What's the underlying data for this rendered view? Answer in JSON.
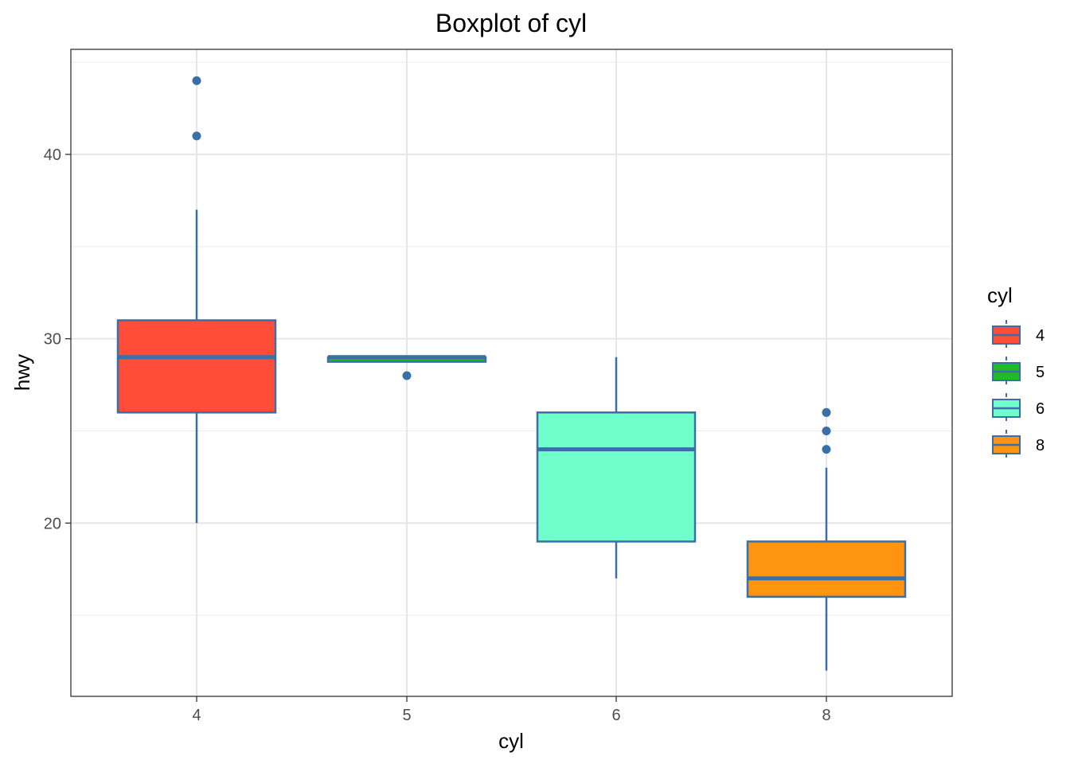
{
  "chart_data": {
    "type": "boxplot",
    "title": "Boxplot of cyl",
    "xlabel": "cyl",
    "ylabel": "hwy",
    "categories": [
      "4",
      "5",
      "6",
      "8"
    ],
    "ylim": [
      10.6,
      45.7
    ],
    "yticks": [
      20,
      30,
      40
    ],
    "grid": true,
    "box_outline_color": "#3a6fa8",
    "boxes": [
      {
        "category": "4",
        "fill": "#ff4d3a",
        "whisker_low": 20,
        "q1": 26,
        "median": 29,
        "q3": 31,
        "whisker_high": 37,
        "outliers": [
          41,
          44
        ]
      },
      {
        "category": "5",
        "fill": "#22bb22",
        "whisker_low": 28.75,
        "q1": 28.75,
        "median": 29,
        "q3": 29,
        "whisker_high": 29,
        "outliers": [
          28
        ]
      },
      {
        "category": "6",
        "fill": "#70ffcc",
        "whisker_low": 17,
        "q1": 19,
        "median": 24,
        "q3": 26,
        "whisker_high": 29,
        "outliers": []
      },
      {
        "category": "8",
        "fill": "#ff9410",
        "whisker_low": 12,
        "q1": 16,
        "median": 17,
        "q3": 19,
        "whisker_high": 23,
        "outliers": [
          24,
          25,
          26
        ]
      }
    ],
    "legend": {
      "title": "cyl",
      "position": "right",
      "items": [
        {
          "label": "4",
          "fill": "#ff4d3a"
        },
        {
          "label": "5",
          "fill": "#22bb22"
        },
        {
          "label": "6",
          "fill": "#70ffcc"
        },
        {
          "label": "8",
          "fill": "#ff9410"
        }
      ]
    }
  }
}
